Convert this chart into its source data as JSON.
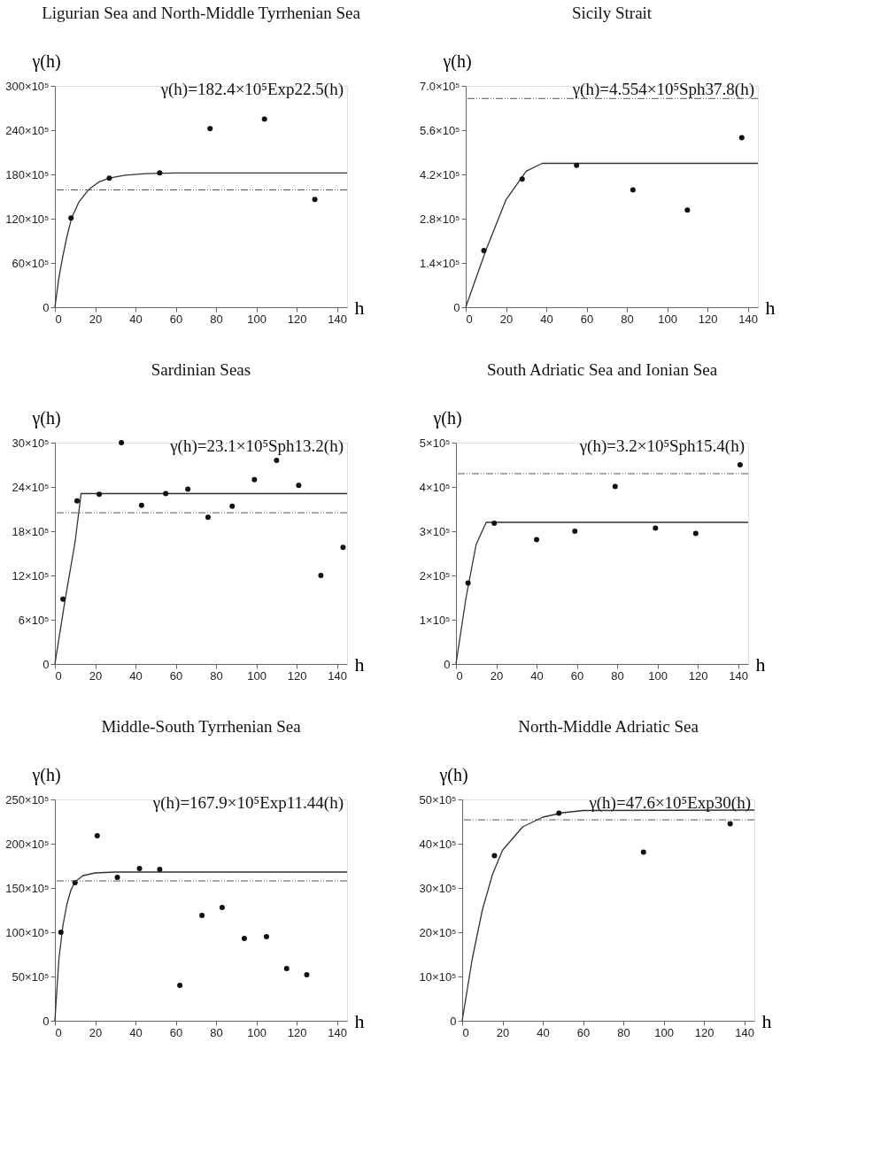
{
  "chart_data": [
    {
      "type": "scatter",
      "title": "Ligurian Sea and North-Middle Tyrrhenian Sea",
      "xlabel": "h",
      "ylabel": "γ(h)",
      "annotations": [
        "γ(h)=182.4×10⁵Exp22.5(h)"
      ],
      "grid": false,
      "xlim": [
        0,
        145
      ],
      "xticks": [
        0,
        20,
        40,
        60,
        80,
        100,
        120,
        140
      ],
      "ylim": [
        0,
        30000000
      ],
      "yticks": [
        0,
        {
          "value": 6000000,
          "label": "60×10⁵"
        },
        {
          "value": 12000000,
          "label": "120×10⁵"
        },
        {
          "value": 18000000,
          "label": "180×10⁵"
        },
        {
          "value": 24000000,
          "label": "240×10⁵"
        },
        {
          "value": 30000000,
          "label": "300×10⁵"
        }
      ],
      "ref_lines": [
        {
          "axis": "y",
          "value": 15900000,
          "label": null,
          "color": "#555555",
          "line_style": "dashed"
        }
      ],
      "series": [
        {
          "type": "line",
          "color": "#333333",
          "x": [
            0,
            2,
            4,
            6,
            8.3,
            12,
            17,
            22,
            27,
            35,
            45,
            60,
            145
          ],
          "values": [
            0,
            4000000,
            7000000,
            9600000,
            12100000,
            14300000,
            16000000,
            17000000,
            17500000,
            17900000,
            18100000,
            18200000,
            18200000
          ]
        },
        {
          "color": "#111111",
          "marker": "circle",
          "x": [
            8,
            27,
            52,
            77,
            104,
            129
          ],
          "values": [
            12100000,
            17500000,
            18200000,
            24200000,
            25500000,
            14600000
          ]
        }
      ]
    },
    {
      "type": "scatter",
      "title": "Sicily Strait",
      "xlabel": "h",
      "ylabel": "γ(h)",
      "annotations": [
        "γ(h)=4.554×10⁵Sph37.8(h)"
      ],
      "grid": false,
      "xlim": [
        0,
        145
      ],
      "xticks": [
        0,
        20,
        40,
        60,
        80,
        100,
        120,
        140
      ],
      "ylim": [
        0,
        700000
      ],
      "yticks": [
        0,
        {
          "value": 140000,
          "label": "1.4×10⁵"
        },
        {
          "value": 280000,
          "label": "2.8×10⁵"
        },
        {
          "value": 420000,
          "label": "4.2×10⁵"
        },
        {
          "value": 560000,
          "label": "5.6×10⁵"
        },
        {
          "value": 700000,
          "label": "7.0×10⁵"
        }
      ],
      "ref_lines": [
        {
          "axis": "y",
          "value": 660000,
          "label": null,
          "color": "#555555",
          "line_style": "dashed"
        }
      ],
      "series": [
        {
          "type": "line",
          "color": "#333333",
          "x": [
            0,
            10,
            20,
            30,
            38,
            145
          ],
          "values": [
            0,
            180000,
            340000,
            430000,
            455000,
            455000
          ]
        },
        {
          "color": "#111111",
          "marker": "circle",
          "x": [
            9,
            28,
            55,
            83,
            110,
            137
          ],
          "values": [
            179000,
            405000,
            449000,
            371000,
            307000,
            536000
          ]
        }
      ]
    },
    {
      "type": "scatter",
      "title": "Sardinian Seas",
      "xlabel": "h",
      "ylabel": "γ(h)",
      "annotations": [
        "γ(h)=23.1×10⁵Sph13.2(h)"
      ],
      "grid": false,
      "xlim": [
        0,
        145
      ],
      "xticks": [
        0,
        20,
        40,
        60,
        80,
        100,
        120,
        140
      ],
      "ylim": [
        0,
        3000000
      ],
      "yticks": [
        0,
        {
          "value": 600000,
          "label": "6×10⁵"
        },
        {
          "value": 1200000,
          "label": "12×10⁵"
        },
        {
          "value": 1800000,
          "label": "18×10⁵"
        },
        {
          "value": 2400000,
          "label": "24×10⁵"
        },
        {
          "value": 3000000,
          "label": "30×10⁵"
        }
      ],
      "ref_lines": [
        {
          "axis": "y",
          "value": 2050000,
          "label": null,
          "color": "#555555",
          "line_style": "dashed"
        }
      ],
      "series": [
        {
          "type": "line",
          "color": "#333333",
          "x": [
            0,
            5,
            10,
            13,
            145
          ],
          "values": [
            0,
            860000,
            1650000,
            2310000,
            2310000
          ]
        },
        {
          "color": "#111111",
          "marker": "circle",
          "x": [
            4,
            11,
            22,
            33,
            43,
            55,
            66,
            76,
            88,
            99,
            110,
            121,
            132,
            143
          ],
          "values": [
            880000,
            2210000,
            2300000,
            3000000,
            2150000,
            2310000,
            2370000,
            1990000,
            2140000,
            2500000,
            2760000,
            2420000,
            1200000,
            1580000
          ]
        }
      ]
    },
    {
      "type": "scatter",
      "title": "South Adriatic Sea and Ionian Sea",
      "xlabel": "h",
      "ylabel": "γ(h)",
      "annotations": [
        "γ(h)=3.2×10⁵Sph15.4(h)"
      ],
      "grid": false,
      "xlim": [
        0,
        145
      ],
      "xticks": [
        0,
        20,
        40,
        60,
        80,
        100,
        120,
        140
      ],
      "ylim": [
        0,
        500000
      ],
      "yticks": [
        0,
        {
          "value": 100000,
          "label": "1×10⁵"
        },
        {
          "value": 200000,
          "label": "2×10⁵"
        },
        {
          "value": 300000,
          "label": "3×10⁵"
        },
        {
          "value": 400000,
          "label": "4×10⁵"
        },
        {
          "value": 500000,
          "label": "5×10⁵"
        }
      ],
      "ref_lines": [
        {
          "axis": "y",
          "value": 430000,
          "label": null,
          "color": "#555555",
          "line_style": "dashed"
        }
      ],
      "series": [
        {
          "type": "line",
          "color": "#333333",
          "x": [
            0,
            5,
            10,
            15,
            145
          ],
          "values": [
            0,
            150000,
            270000,
            320000,
            320000
          ]
        },
        {
          "color": "#111111",
          "marker": "circle",
          "x": [
            6,
            19,
            40,
            59,
            79,
            99,
            119,
            141
          ],
          "values": [
            183000,
            318000,
            281000,
            300000,
            401000,
            307000,
            295000,
            450000
          ]
        }
      ]
    },
    {
      "type": "scatter",
      "title": "Middle-South Tyrrhenian Sea",
      "xlabel": "h",
      "ylabel": "γ(h)",
      "annotations": [
        "γ(h)=167.9×10⁵Exp11.44(h)"
      ],
      "grid": false,
      "xlim": [
        0,
        145
      ],
      "xticks": [
        0,
        20,
        40,
        60,
        80,
        100,
        120,
        140
      ],
      "ylim": [
        0,
        25000000
      ],
      "yticks": [
        0,
        {
          "value": 5000000,
          "label": "50×10⁵"
        },
        {
          "value": 10000000,
          "label": "100×10⁵"
        },
        {
          "value": 15000000,
          "label": "150×10⁵"
        },
        {
          "value": 20000000,
          "label": "200×10⁵"
        },
        {
          "value": 25000000,
          "label": "250×10⁵"
        }
      ],
      "ref_lines": [
        {
          "axis": "y",
          "value": 15800000,
          "label": null,
          "color": "#555555",
          "line_style": "dashed"
        }
      ],
      "series": [
        {
          "type": "line",
          "color": "#333333",
          "x": [
            0,
            2,
            4,
            6,
            8,
            10,
            14,
            20,
            30,
            145
          ],
          "values": [
            0,
            7000000,
            10800000,
            13200000,
            14800000,
            15700000,
            16400000,
            16700000,
            16800000,
            16800000
          ]
        },
        {
          "color": "#111111",
          "marker": "circle",
          "x": [
            3,
            10,
            21,
            31,
            42,
            52,
            62,
            73,
            83,
            94,
            105,
            115,
            125
          ],
          "values": [
            10000000,
            15600000,
            20900000,
            16200000,
            17200000,
            17100000,
            4000000,
            11900000,
            12800000,
            9300000,
            9500000,
            5900000,
            5200000
          ]
        }
      ]
    },
    {
      "type": "scatter",
      "title": "North-Middle Adriatic Sea",
      "xlabel": "h",
      "ylabel": "γ(h)",
      "annotations": [
        "γ(h)=47.6×10⁵Exp30(h)"
      ],
      "grid": false,
      "xlim": [
        0,
        145
      ],
      "xticks": [
        0,
        20,
        40,
        60,
        80,
        100,
        120,
        140
      ],
      "ylim": [
        0,
        5000000
      ],
      "yticks": [
        0,
        {
          "value": 1000000,
          "label": "10×10⁵"
        },
        {
          "value": 2000000,
          "label": "20×10⁵"
        },
        {
          "value": 3000000,
          "label": "30×10⁵"
        },
        {
          "value": 4000000,
          "label": "40×10⁵"
        },
        {
          "value": 5000000,
          "label": "50×10⁵"
        }
      ],
      "ref_lines": [
        {
          "axis": "y",
          "value": 4540000,
          "label": null,
          "color": "#555555",
          "line_style": "dashed"
        }
      ],
      "series": [
        {
          "type": "line",
          "color": "#333333",
          "x": [
            0,
            5,
            10,
            15,
            20,
            30,
            40,
            50,
            60,
            145
          ],
          "values": [
            0,
            1400000,
            2500000,
            3300000,
            3850000,
            4380000,
            4600000,
            4700000,
            4750000,
            4760000
          ]
        },
        {
          "color": "#111111",
          "marker": "circle",
          "x": [
            16,
            48,
            90,
            133
          ],
          "values": [
            3730000,
            4690000,
            3810000,
            4450000
          ]
        }
      ]
    }
  ]
}
